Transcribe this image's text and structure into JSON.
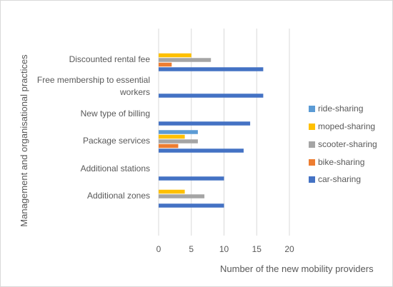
{
  "chart_data": {
    "type": "bar",
    "orientation": "horizontal",
    "xlabel": "Number of the new mobility providers",
    "ylabel": "Management and organisational practices",
    "xlim": [
      0,
      20
    ],
    "x_ticks": [
      "0",
      "5",
      "10",
      "15",
      "20"
    ],
    "grid": "vertical",
    "legend_position": "right",
    "categories": [
      "Discounted rental fee",
      "Free membership to essential workers",
      "New type of billing",
      "Package services",
      "Additional stations",
      "Additional zones"
    ],
    "category_labels": [
      [
        "Discounted rental fee"
      ],
      [
        "Free membership to essential",
        "workers"
      ],
      [
        "New type of billing"
      ],
      [
        "Package services"
      ],
      [
        "Additional stations"
      ],
      [
        "Additional zones"
      ]
    ],
    "series": [
      {
        "name": "ride-sharing",
        "color": "#5b9bd5",
        "values": [
          0,
          0,
          0,
          6,
          0,
          0
        ]
      },
      {
        "name": "moped-sharing",
        "color": "#ffc000",
        "values": [
          5,
          0,
          0,
          4,
          0,
          4
        ]
      },
      {
        "name": "scooter-sharing",
        "color": "#a5a5a5",
        "values": [
          8,
          0,
          0,
          6,
          0,
          7
        ]
      },
      {
        "name": "bike-sharing",
        "color": "#ed7d31",
        "values": [
          2,
          0,
          0,
          3,
          0,
          0
        ]
      },
      {
        "name": "car-sharing",
        "color": "#4472c4",
        "values": [
          16,
          16,
          14,
          13,
          10,
          10
        ]
      }
    ],
    "colors": {
      "border": "#d9d9d9",
      "grid": "#d9d9d9",
      "text": "#595959"
    }
  }
}
